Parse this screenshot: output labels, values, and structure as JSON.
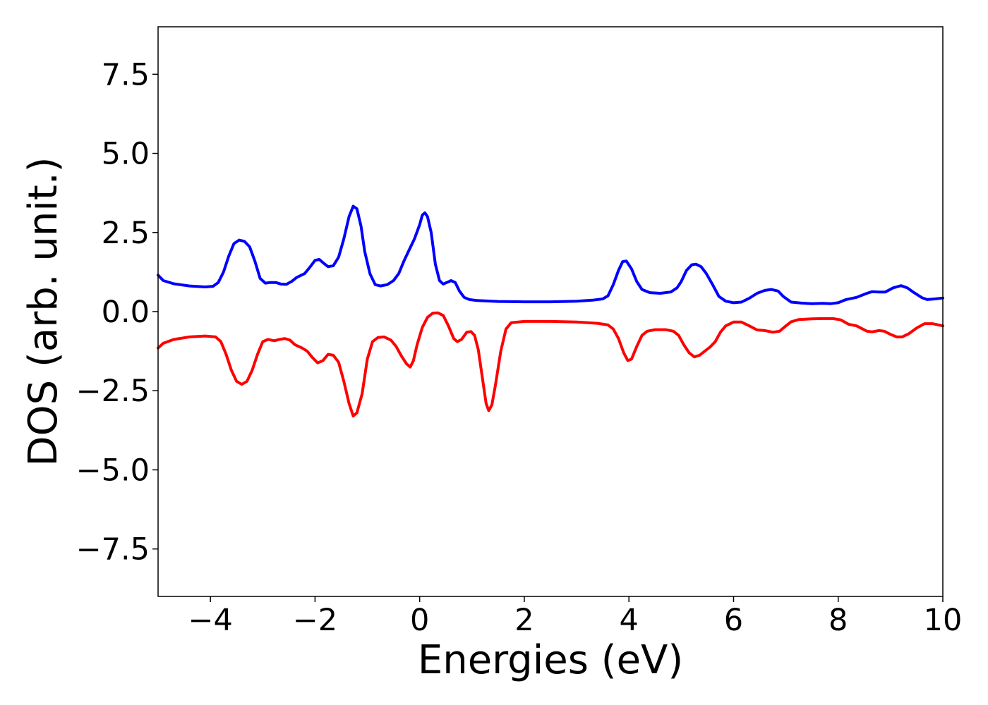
{
  "chart_data": {
    "type": "line",
    "title": "",
    "xlabel": "Energies (eV)",
    "ylabel": "DOS (arb. unit.)",
    "xlim": [
      -5,
      10
    ],
    "ylim": [
      -9,
      9
    ],
    "grid": false,
    "x_ticks": [
      -4,
      -2,
      0,
      2,
      4,
      6,
      8,
      10
    ],
    "x_tick_labels": [
      "−4",
      "−2",
      "0",
      "2",
      "4",
      "6",
      "8",
      "10"
    ],
    "y_ticks": [
      7.5,
      5.0,
      2.5,
      0.0,
      -2.5,
      -5.0,
      -7.5
    ],
    "y_tick_labels": [
      "7.5",
      "5.0",
      "2.5",
      "0.0",
      "−2.5",
      "−5.0",
      "−7.5"
    ],
    "series": [
      {
        "color": "#0000ff",
        "points": [
          [
            -5.0,
            1.15
          ],
          [
            -4.9,
            0.98
          ],
          [
            -4.7,
            0.88
          ],
          [
            -4.4,
            0.81
          ],
          [
            -4.1,
            0.78
          ],
          [
            -3.95,
            0.8
          ],
          [
            -3.85,
            0.92
          ],
          [
            -3.75,
            1.25
          ],
          [
            -3.65,
            1.75
          ],
          [
            -3.55,
            2.15
          ],
          [
            -3.45,
            2.26
          ],
          [
            -3.35,
            2.22
          ],
          [
            -3.25,
            2.05
          ],
          [
            -3.15,
            1.6
          ],
          [
            -3.05,
            1.05
          ],
          [
            -2.95,
            0.9
          ],
          [
            -2.85,
            0.92
          ],
          [
            -2.75,
            0.92
          ],
          [
            -2.65,
            0.87
          ],
          [
            -2.55,
            0.86
          ],
          [
            -2.45,
            0.95
          ],
          [
            -2.35,
            1.08
          ],
          [
            -2.2,
            1.2
          ],
          [
            -2.1,
            1.4
          ],
          [
            -2.0,
            1.62
          ],
          [
            -1.92,
            1.65
          ],
          [
            -1.85,
            1.55
          ],
          [
            -1.75,
            1.42
          ],
          [
            -1.65,
            1.45
          ],
          [
            -1.55,
            1.72
          ],
          [
            -1.45,
            2.3
          ],
          [
            -1.35,
            3.0
          ],
          [
            -1.27,
            3.33
          ],
          [
            -1.2,
            3.25
          ],
          [
            -1.12,
            2.7
          ],
          [
            -1.05,
            1.9
          ],
          [
            -0.95,
            1.2
          ],
          [
            -0.85,
            0.85
          ],
          [
            -0.75,
            0.81
          ],
          [
            -0.62,
            0.85
          ],
          [
            -0.5,
            0.98
          ],
          [
            -0.4,
            1.2
          ],
          [
            -0.3,
            1.6
          ],
          [
            -0.2,
            1.95
          ],
          [
            -0.1,
            2.3
          ],
          [
            0.0,
            2.75
          ],
          [
            0.05,
            3.05
          ],
          [
            0.1,
            3.12
          ],
          [
            0.15,
            3.0
          ],
          [
            0.22,
            2.5
          ],
          [
            0.3,
            1.5
          ],
          [
            0.38,
            0.98
          ],
          [
            0.45,
            0.87
          ],
          [
            0.52,
            0.92
          ],
          [
            0.6,
            0.98
          ],
          [
            0.68,
            0.92
          ],
          [
            0.76,
            0.65
          ],
          [
            0.85,
            0.45
          ],
          [
            0.95,
            0.38
          ],
          [
            1.1,
            0.35
          ],
          [
            1.5,
            0.32
          ],
          [
            2.0,
            0.31
          ],
          [
            2.5,
            0.31
          ],
          [
            3.0,
            0.33
          ],
          [
            3.3,
            0.36
          ],
          [
            3.5,
            0.4
          ],
          [
            3.6,
            0.5
          ],
          [
            3.7,
            0.85
          ],
          [
            3.8,
            1.3
          ],
          [
            3.88,
            1.58
          ],
          [
            3.95,
            1.6
          ],
          [
            4.05,
            1.35
          ],
          [
            4.15,
            0.95
          ],
          [
            4.25,
            0.7
          ],
          [
            4.4,
            0.6
          ],
          [
            4.6,
            0.58
          ],
          [
            4.8,
            0.62
          ],
          [
            4.92,
            0.75
          ],
          [
            5.0,
            0.95
          ],
          [
            5.1,
            1.3
          ],
          [
            5.2,
            1.48
          ],
          [
            5.28,
            1.5
          ],
          [
            5.38,
            1.42
          ],
          [
            5.48,
            1.2
          ],
          [
            5.6,
            0.85
          ],
          [
            5.72,
            0.48
          ],
          [
            5.85,
            0.33
          ],
          [
            6.0,
            0.28
          ],
          [
            6.15,
            0.3
          ],
          [
            6.3,
            0.42
          ],
          [
            6.45,
            0.58
          ],
          [
            6.6,
            0.67
          ],
          [
            6.72,
            0.7
          ],
          [
            6.85,
            0.65
          ],
          [
            6.95,
            0.48
          ],
          [
            7.1,
            0.3
          ],
          [
            7.3,
            0.27
          ],
          [
            7.5,
            0.25
          ],
          [
            7.7,
            0.26
          ],
          [
            7.85,
            0.25
          ],
          [
            8.0,
            0.28
          ],
          [
            8.15,
            0.38
          ],
          [
            8.35,
            0.45
          ],
          [
            8.55,
            0.58
          ],
          [
            8.65,
            0.63
          ],
          [
            8.78,
            0.62
          ],
          [
            8.9,
            0.62
          ],
          [
            9.05,
            0.75
          ],
          [
            9.2,
            0.82
          ],
          [
            9.32,
            0.75
          ],
          [
            9.45,
            0.6
          ],
          [
            9.6,
            0.44
          ],
          [
            9.7,
            0.38
          ],
          [
            9.85,
            0.4
          ],
          [
            10.0,
            0.43
          ]
        ]
      },
      {
        "color": "#ff0000",
        "points": [
          [
            -5.0,
            -1.15
          ],
          [
            -4.9,
            -1.0
          ],
          [
            -4.7,
            -0.88
          ],
          [
            -4.4,
            -0.8
          ],
          [
            -4.1,
            -0.77
          ],
          [
            -3.9,
            -0.8
          ],
          [
            -3.8,
            -0.95
          ],
          [
            -3.7,
            -1.35
          ],
          [
            -3.6,
            -1.85
          ],
          [
            -3.5,
            -2.2
          ],
          [
            -3.4,
            -2.3
          ],
          [
            -3.3,
            -2.2
          ],
          [
            -3.2,
            -1.85
          ],
          [
            -3.1,
            -1.35
          ],
          [
            -3.0,
            -0.95
          ],
          [
            -2.9,
            -0.88
          ],
          [
            -2.78,
            -0.92
          ],
          [
            -2.68,
            -0.88
          ],
          [
            -2.58,
            -0.85
          ],
          [
            -2.48,
            -0.9
          ],
          [
            -2.38,
            -1.05
          ],
          [
            -2.25,
            -1.15
          ],
          [
            -2.15,
            -1.25
          ],
          [
            -2.05,
            -1.45
          ],
          [
            -1.95,
            -1.62
          ],
          [
            -1.85,
            -1.55
          ],
          [
            -1.75,
            -1.35
          ],
          [
            -1.65,
            -1.38
          ],
          [
            -1.55,
            -1.6
          ],
          [
            -1.45,
            -2.2
          ],
          [
            -1.35,
            -2.9
          ],
          [
            -1.27,
            -3.3
          ],
          [
            -1.2,
            -3.2
          ],
          [
            -1.1,
            -2.6
          ],
          [
            -1.0,
            -1.5
          ],
          [
            -0.9,
            -0.95
          ],
          [
            -0.8,
            -0.82
          ],
          [
            -0.68,
            -0.8
          ],
          [
            -0.55,
            -0.9
          ],
          [
            -0.45,
            -1.1
          ],
          [
            -0.35,
            -1.4
          ],
          [
            -0.25,
            -1.65
          ],
          [
            -0.18,
            -1.75
          ],
          [
            -0.12,
            -1.55
          ],
          [
            -0.05,
            -1.05
          ],
          [
            0.05,
            -0.5
          ],
          [
            0.15,
            -0.18
          ],
          [
            0.25,
            -0.05
          ],
          [
            0.35,
            -0.04
          ],
          [
            0.45,
            -0.12
          ],
          [
            0.55,
            -0.45
          ],
          [
            0.65,
            -0.85
          ],
          [
            0.72,
            -0.95
          ],
          [
            0.8,
            -0.88
          ],
          [
            0.9,
            -0.65
          ],
          [
            0.98,
            -0.63
          ],
          [
            1.05,
            -0.75
          ],
          [
            1.12,
            -1.2
          ],
          [
            1.2,
            -2.1
          ],
          [
            1.27,
            -2.9
          ],
          [
            1.32,
            -3.13
          ],
          [
            1.38,
            -2.95
          ],
          [
            1.45,
            -2.3
          ],
          [
            1.55,
            -1.25
          ],
          [
            1.65,
            -0.55
          ],
          [
            1.75,
            -0.35
          ],
          [
            2.0,
            -0.31
          ],
          [
            2.5,
            -0.31
          ],
          [
            3.0,
            -0.33
          ],
          [
            3.4,
            -0.37
          ],
          [
            3.6,
            -0.42
          ],
          [
            3.7,
            -0.55
          ],
          [
            3.8,
            -0.85
          ],
          [
            3.9,
            -1.3
          ],
          [
            3.98,
            -1.55
          ],
          [
            4.05,
            -1.5
          ],
          [
            4.15,
            -1.1
          ],
          [
            4.25,
            -0.75
          ],
          [
            4.35,
            -0.62
          ],
          [
            4.5,
            -0.57
          ],
          [
            4.7,
            -0.57
          ],
          [
            4.85,
            -0.62
          ],
          [
            4.95,
            -0.75
          ],
          [
            5.05,
            -1.05
          ],
          [
            5.15,
            -1.3
          ],
          [
            5.25,
            -1.43
          ],
          [
            5.35,
            -1.38
          ],
          [
            5.45,
            -1.25
          ],
          [
            5.55,
            -1.12
          ],
          [
            5.65,
            -0.95
          ],
          [
            5.75,
            -0.65
          ],
          [
            5.85,
            -0.45
          ],
          [
            6.0,
            -0.33
          ],
          [
            6.15,
            -0.33
          ],
          [
            6.3,
            -0.45
          ],
          [
            6.45,
            -0.58
          ],
          [
            6.6,
            -0.6
          ],
          [
            6.75,
            -0.65
          ],
          [
            6.88,
            -0.62
          ],
          [
            6.98,
            -0.48
          ],
          [
            7.1,
            -0.32
          ],
          [
            7.25,
            -0.25
          ],
          [
            7.5,
            -0.23
          ],
          [
            7.7,
            -0.22
          ],
          [
            7.9,
            -0.22
          ],
          [
            8.05,
            -0.26
          ],
          [
            8.2,
            -0.4
          ],
          [
            8.35,
            -0.45
          ],
          [
            8.55,
            -0.62
          ],
          [
            8.65,
            -0.64
          ],
          [
            8.78,
            -0.6
          ],
          [
            8.88,
            -0.62
          ],
          [
            9.0,
            -0.72
          ],
          [
            9.12,
            -0.8
          ],
          [
            9.22,
            -0.8
          ],
          [
            9.35,
            -0.7
          ],
          [
            9.5,
            -0.52
          ],
          [
            9.65,
            -0.38
          ],
          [
            9.8,
            -0.38
          ],
          [
            10.0,
            -0.45
          ]
        ]
      }
    ]
  }
}
